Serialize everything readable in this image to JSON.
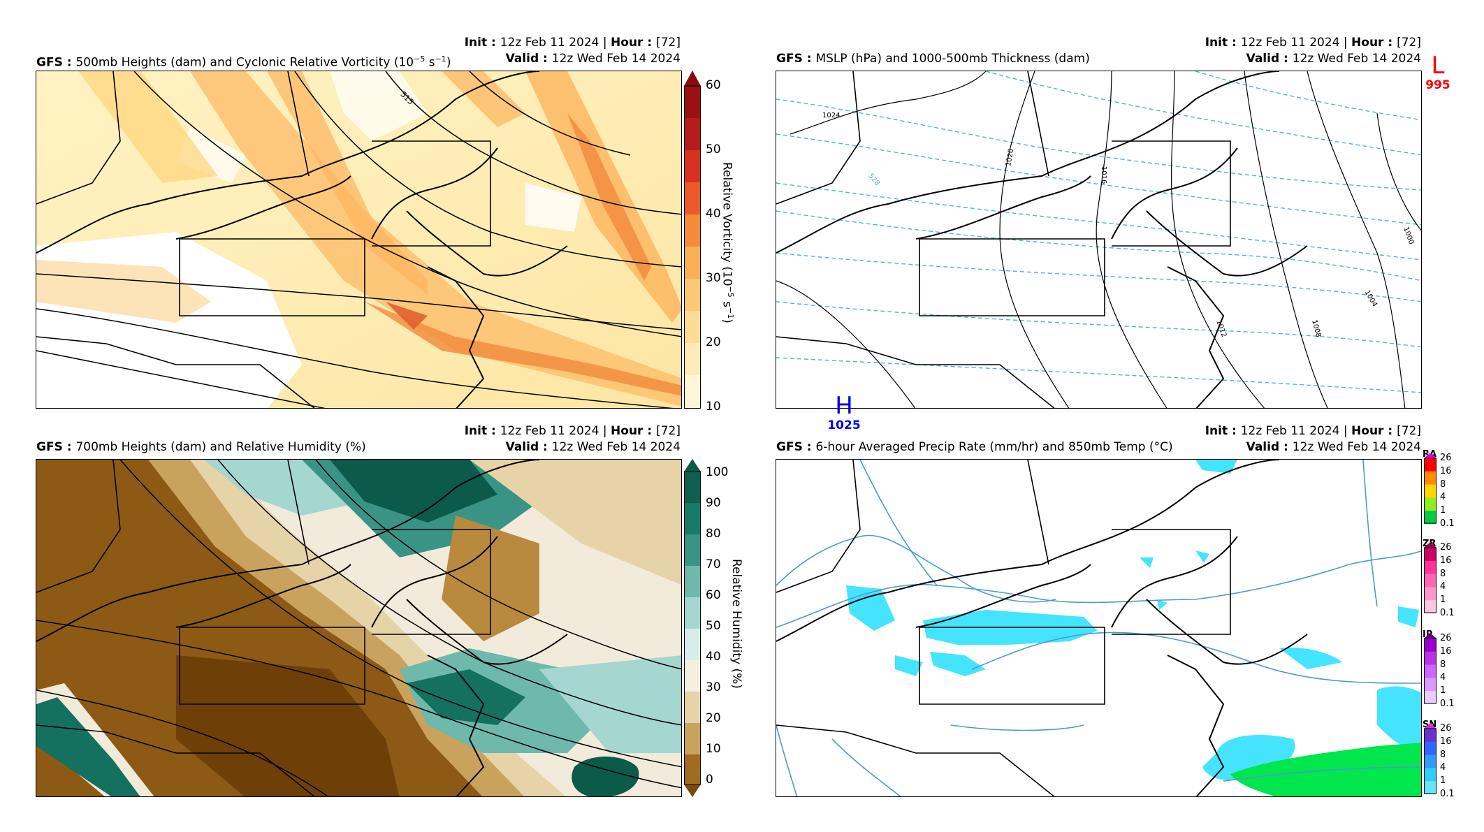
{
  "panels": {
    "p1": {
      "model": "GFS",
      "title": "500mb Heights (dam) and Cyclonic Relative Vorticity (10",
      "title_exp": "−5",
      "title_unit": " s",
      "title_exp2": "−1",
      "title_close": ")",
      "init_label": "Init",
      "init_value": "12z Feb 11 2024",
      "hour_label": "Hour",
      "hour_value": "[72]",
      "valid_label": "Valid",
      "valid_value": "12z Wed Feb 14 2024",
      "cbar_ticks": [
        "60",
        "50",
        "40",
        "30",
        "20",
        "10"
      ],
      "cbar_title": "Relative Vorticity  (10",
      "cbar_exp": "−5",
      "cbar_unit": " s",
      "cbar_exp2": "−1",
      "cbar_close": ")",
      "contour_label": "515"
    },
    "p2": {
      "model": "GFS",
      "title": "MSLP (hPa) and 1000-500mb Thickness (dam)",
      "init_label": "Init",
      "init_value": "12z Feb 11 2024",
      "hour_label": "Hour",
      "hour_value": "[72]",
      "valid_label": "Valid",
      "valid_value": "12z Wed Feb 14 2024",
      "low_letter": "L",
      "low_value": "995",
      "high_letter": "H",
      "high_value": "1025",
      "isobar_labels": [
        "1024",
        "1020",
        "1016",
        "1012",
        "1008",
        "1004",
        "1000"
      ],
      "thickness_label": "528"
    },
    "p3": {
      "model": "GFS",
      "title": "700mb Heights (dam) and Relative Humidity (%)",
      "init_label": "Init",
      "init_value": "12z Feb 11 2024",
      "hour_label": "Hour",
      "hour_value": "[72]",
      "valid_label": "Valid",
      "valid_value": "12z Wed Feb 14 2024",
      "cbar_ticks": [
        "100",
        "90",
        "80",
        "70",
        "60",
        "50",
        "40",
        "30",
        "20",
        "10",
        "0"
      ],
      "cbar_title": "Relative Humidity (%)"
    },
    "p4": {
      "model": "GFS",
      "title": "6-hour Averaged Precip Rate (mm/hr) and 850mb Temp (°C)",
      "init_label": "Init",
      "init_value": "12z Feb 11 2024",
      "hour_label": "Hour",
      "hour_value": "[72]",
      "valid_label": "Valid",
      "valid_value": "12z Wed Feb 14 2024",
      "legends": [
        {
          "label": "RA",
          "ticks": [
            "26",
            "16",
            "8",
            "4",
            "1",
            "0.1"
          ],
          "colors": [
            "#e600e6",
            "#ff0000",
            "#ff8c00",
            "#ffd700",
            "#90ee20",
            "#00cc44"
          ]
        },
        {
          "label": "ZR",
          "ticks": [
            "26",
            "16",
            "8",
            "4",
            "1",
            "0.1"
          ],
          "colors": [
            "#99004d",
            "#cc0066",
            "#ff3399",
            "#ff66b3",
            "#ff99cc",
            "#ffc6e0"
          ]
        },
        {
          "label": "IP",
          "ticks": [
            "26",
            "16",
            "8",
            "4",
            "1",
            "0.1"
          ],
          "colors": [
            "#6a0080",
            "#9900cc",
            "#b833e6",
            "#cc66ff",
            "#dd99ff",
            "#eeccff"
          ]
        },
        {
          "label": "SN",
          "ticks": [
            "26",
            "16",
            "8",
            "4",
            "1",
            "0.1"
          ],
          "colors": [
            "#cc33cc",
            "#6633cc",
            "#3366ff",
            "#3399ff",
            "#33ccff",
            "#66e6ff"
          ]
        }
      ]
    }
  },
  "colors": {
    "vort_ramp": [
      "#fff8cc",
      "#feeaa0",
      "#fdd47a",
      "#fdb95b",
      "#f59a42",
      "#e8702e",
      "#d64123",
      "#b51c1c",
      "#8a0c0c"
    ],
    "rh_ramp": [
      "#7a4a0c",
      "#8c5a14",
      "#a06c22",
      "#b98a3e",
      "#d1ad6a",
      "#e7d3a8",
      "#f5efe0",
      "#d8ede9",
      "#a5d6cf",
      "#6fb8ac",
      "#3a9486",
      "#14715f",
      "#0b5a4a"
    ],
    "low_color": "#ff0000",
    "high_color": "#0000ee",
    "thickness_color": "#4cb6c8",
    "temp_color": "#4a9ad0"
  }
}
